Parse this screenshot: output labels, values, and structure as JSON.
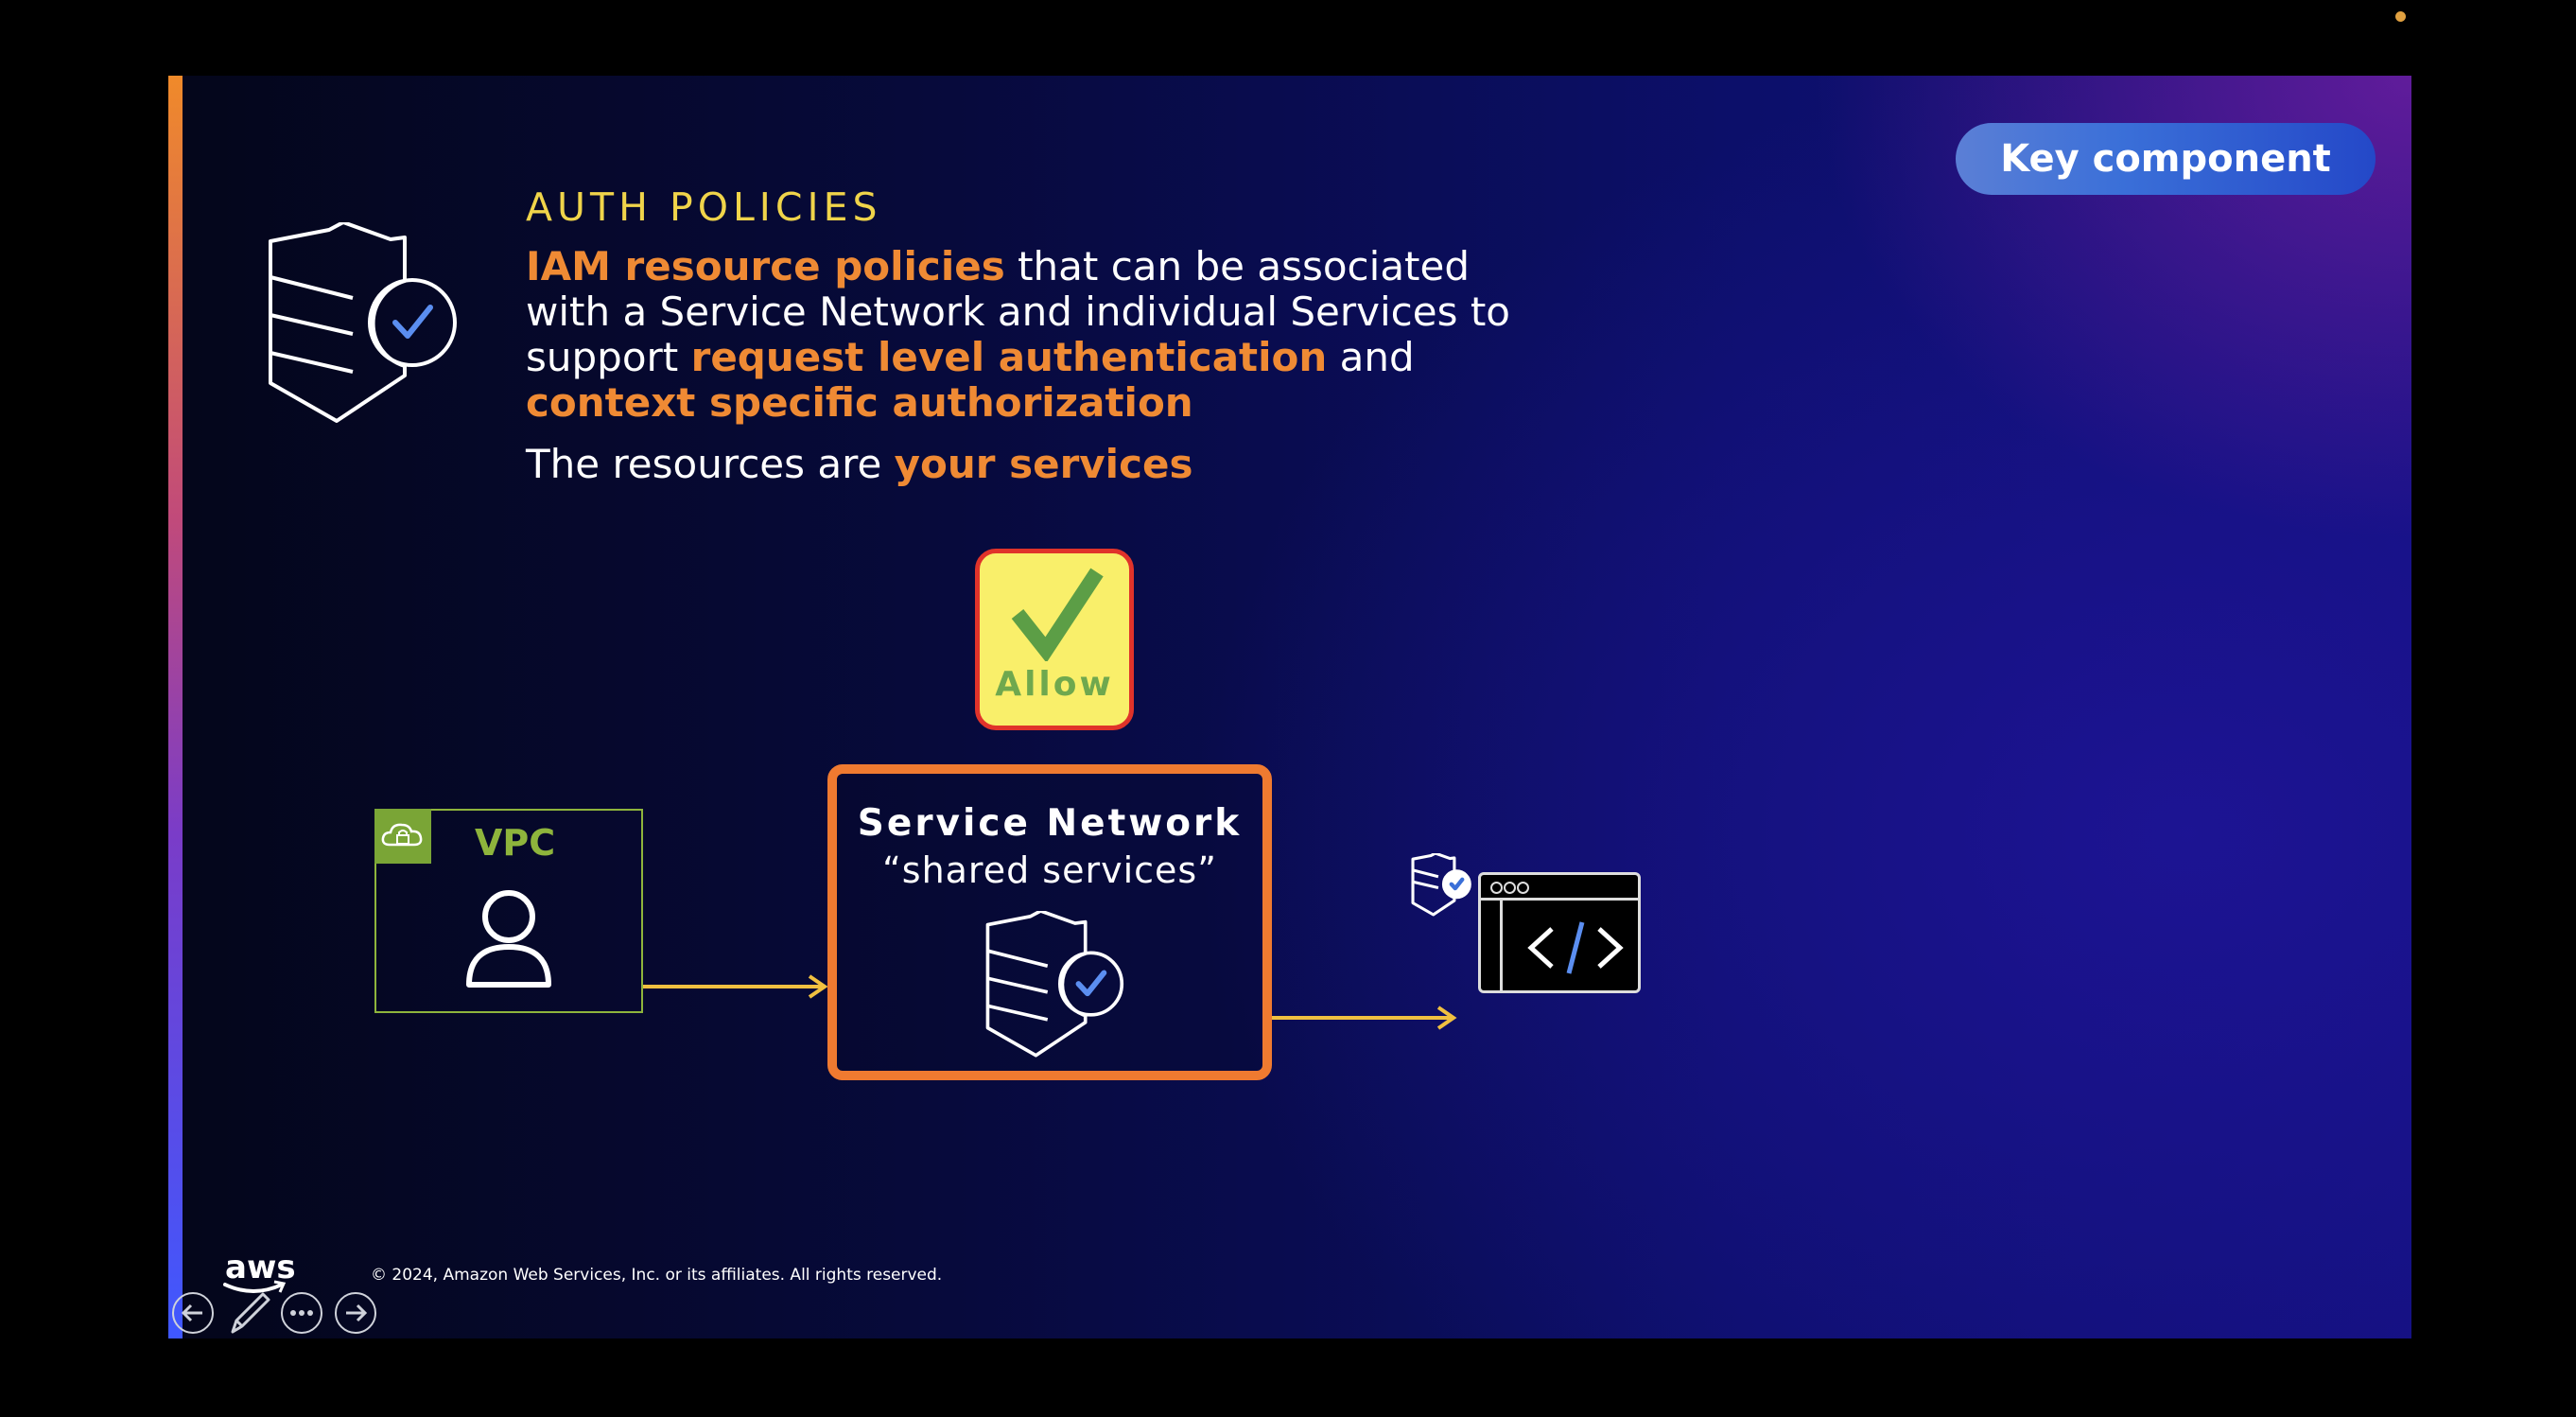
{
  "badge": {
    "label": "Key component"
  },
  "section": {
    "title": "AUTH POLICIES"
  },
  "description": {
    "part1": "IAM resource policies",
    "part2": " that can be associated with a Service Network and individual Services to support ",
    "part3": "request level authentication",
    "part4": " and ",
    "part5": "context specific authorization"
  },
  "resources": {
    "prefix": "The resources are ",
    "highlight": "your services"
  },
  "diagram": {
    "allow_label": "Allow",
    "vpc_label": "VPC",
    "service_network_title": "Service Network",
    "service_network_subtitle": "“shared services”"
  },
  "footer": {
    "logo_text": "aws",
    "copyright": "© 2024, Amazon Web Services, Inc. or its affiliates. All rights reserved."
  },
  "colors": {
    "accent_orange": "#ef7a30",
    "title_yellow": "#f0d44a",
    "vpc_green": "#8eb43c",
    "allow_yellow": "#f9ef6a",
    "allow_border_red": "#e0332a"
  }
}
